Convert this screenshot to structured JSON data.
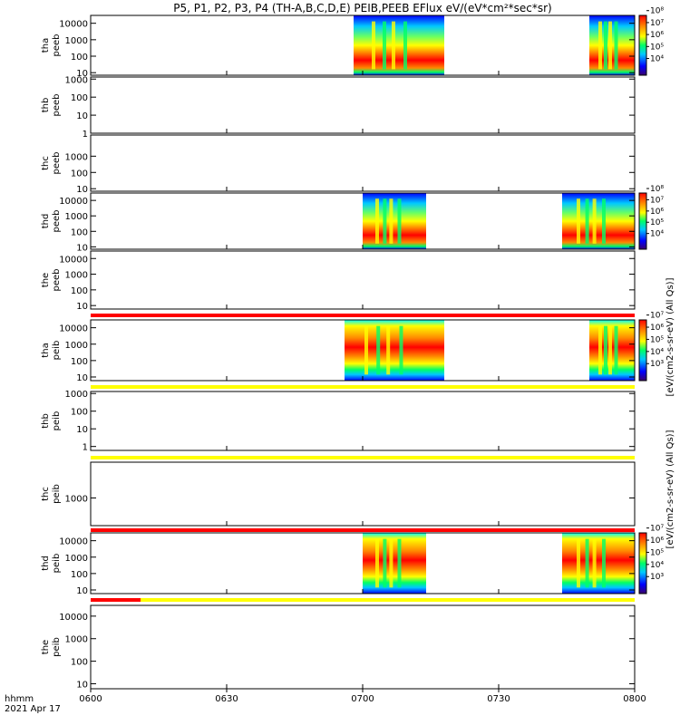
{
  "title": "P5, P1, P2, P3, P4 (TH-A,B,C,D,E) PEIB,PEEB EFlux eV/(eV*cm²*sec*sr)",
  "time_axis": {
    "label_line1": "hhmm",
    "label_line2": "2021 Apr 17",
    "ticks": [
      "0600",
      "0630",
      "0700",
      "0730",
      "0800"
    ],
    "range_minutes": [
      0,
      120
    ],
    "tick_minutes": [
      0,
      30,
      60,
      90,
      120
    ]
  },
  "colorbar_labels": {
    "upper": "[eV/(cm2-s-sr-eV) (All Qs)]",
    "lower": "[eV/(cm2-s-sr-eV) (All Qs)]"
  },
  "colors": {
    "flag_red": "#ff0000",
    "flag_yellow": "#ffff00",
    "spectrogram_scale": [
      "#3a006a",
      "#0000ff",
      "#00c8ff",
      "#00ff66",
      "#ffff00",
      "#ff8800",
      "#ff0000"
    ]
  },
  "chart_data": {
    "type": "heatmap",
    "panels": [
      {
        "id": "tha-peeb",
        "label1": "tha",
        "label2": "peeb",
        "ylim": [
          7,
          30000
        ],
        "yticks": [
          "10000",
          "1000",
          "100",
          "10"
        ],
        "ytick_values": [
          10000,
          1000,
          100,
          10
        ],
        "intervals": [
          [
            58,
            78
          ],
          [
            110,
            120
          ]
        ],
        "colorbar_ticks": [
          "10⁸",
          "10⁷",
          "10⁶",
          "10⁵",
          "10⁴"
        ],
        "colorbar_range_exp": [
          3.6,
          8.6
        ],
        "flag": null
      },
      {
        "id": "thb-peeb",
        "label1": "thb",
        "label2": "peeb",
        "ylim": [
          1,
          1300
        ],
        "yticks": [
          "1000",
          "100",
          "10",
          "1"
        ],
        "ytick_values": [
          1000,
          100,
          10,
          1
        ],
        "intervals": [],
        "colorbar_ticks": [],
        "flag": null
      },
      {
        "id": "thc-peeb",
        "label1": "thc",
        "label2": "peeb",
        "ylim": [
          7,
          20000
        ],
        "yticks": [
          "1000",
          "100",
          "10"
        ],
        "ytick_values": [
          1000,
          100,
          10
        ],
        "intervals": [],
        "colorbar_ticks": [],
        "flag": null
      },
      {
        "id": "thd-peeb",
        "label1": "thd",
        "label2": "peeb",
        "ylim": [
          7,
          30000
        ],
        "yticks": [
          "10000",
          "1000",
          "100",
          "10"
        ],
        "ytick_values": [
          10000,
          1000,
          100,
          10
        ],
        "intervals": [
          [
            60,
            74
          ],
          [
            104,
            120
          ]
        ],
        "colorbar_ticks": [
          "10⁸",
          "10⁷",
          "10⁶",
          "10⁵",
          "10⁴"
        ],
        "colorbar_range_exp": [
          3.6,
          8.6
        ],
        "flag": null
      },
      {
        "id": "the-peeb",
        "label1": "the",
        "label2": "peeb",
        "ylim": [
          6,
          30000
        ],
        "yticks": [
          "10000",
          "1000",
          "100",
          "10"
        ],
        "ytick_values": [
          10000,
          1000,
          100,
          10
        ],
        "intervals": [],
        "colorbar_ticks": [],
        "flag": [
          {
            "from": 0,
            "to": 120,
            "color": "red"
          }
        ]
      },
      {
        "id": "tha-peib",
        "label1": "tha",
        "label2": "peib",
        "ylim": [
          6,
          30000
        ],
        "yticks": [
          "10000",
          "1000",
          "100",
          "10"
        ],
        "ytick_values": [
          10000,
          1000,
          100,
          10
        ],
        "intervals": [
          [
            56,
            78
          ],
          [
            110,
            120
          ]
        ],
        "colorbar_ticks": [
          "10⁷",
          "10⁶",
          "10⁵",
          "10⁴",
          "10³"
        ],
        "colorbar_range_exp": [
          2.6,
          7.6
        ],
        "flag": [
          {
            "from": 0,
            "to": 120,
            "color": "yellow"
          }
        ]
      },
      {
        "id": "thb-peib",
        "label1": "thb",
        "label2": "peib",
        "ylim": [
          0.6,
          1300
        ],
        "yticks": [
          "1000",
          "100",
          "10",
          "1"
        ],
        "ytick_values": [
          1000,
          100,
          10,
          1
        ],
        "intervals": [],
        "colorbar_ticks": [],
        "flag": [
          {
            "from": 0,
            "to": 120,
            "color": "yellow"
          }
        ]
      },
      {
        "id": "thc-peib",
        "label1": "thc",
        "label2": "peib",
        "ylim": [
          200,
          8000
        ],
        "yticks": [
          "1000"
        ],
        "ytick_values": [
          1000
        ],
        "intervals": [],
        "colorbar_ticks": [],
        "flag": [
          {
            "from": 0,
            "to": 120,
            "color": "red"
          }
        ]
      },
      {
        "id": "thd-peib",
        "label1": "thd",
        "label2": "peib",
        "ylim": [
          6,
          30000
        ],
        "yticks": [
          "10000",
          "1000",
          "100",
          "10"
        ],
        "ytick_values": [
          10000,
          1000,
          100,
          10
        ],
        "intervals": [
          [
            60,
            74
          ],
          [
            104,
            120
          ]
        ],
        "colorbar_ticks": [
          "10⁷",
          "10⁶",
          "10⁵",
          "10⁴",
          "10³"
        ],
        "colorbar_range_exp": [
          2.6,
          7.6
        ],
        "flag": [
          {
            "from": 0,
            "to": 11,
            "color": "red"
          },
          {
            "from": 11,
            "to": 120,
            "color": "yellow"
          }
        ]
      },
      {
        "id": "the-peib",
        "label1": "the",
        "label2": "peib",
        "ylim": [
          6,
          30000
        ],
        "yticks": [
          "10000",
          "1000",
          "100",
          "10"
        ],
        "ytick_values": [
          10000,
          1000,
          100,
          10
        ],
        "intervals": [],
        "colorbar_ticks": [],
        "flag": null
      }
    ]
  }
}
